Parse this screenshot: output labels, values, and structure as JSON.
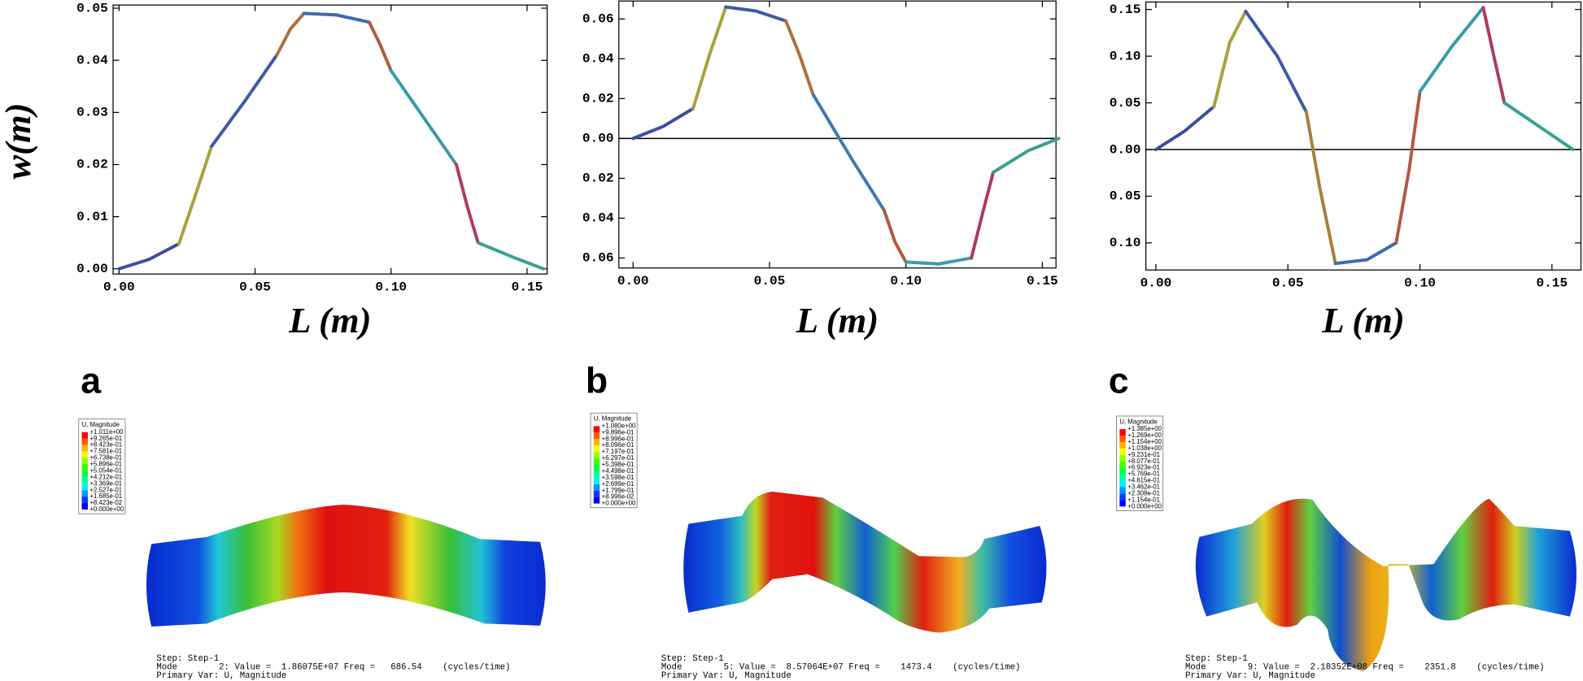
{
  "chart_data": [
    {
      "type": "line",
      "ylabel": "w(m)",
      "xlabel": "L (m)",
      "xlim": [
        -0.0022,
        0.1574
      ],
      "ylim": [
        -0.001,
        0.0506
      ],
      "xticks": [
        {
          "value": 0,
          "label": "0.00"
        },
        {
          "value": 0.05,
          "label": "0.05"
        },
        {
          "value": 0.1,
          "label": "0.10"
        },
        {
          "value": 0.15,
          "label": "0.15"
        }
      ],
      "yticks": [
        {
          "value": 0,
          "label": "0.00"
        },
        {
          "value": 0.01,
          "label": "0.01"
        },
        {
          "value": 0.02,
          "label": "0.02"
        },
        {
          "value": 0.03,
          "label": "0.03"
        },
        {
          "value": 0.04,
          "label": "0.04"
        },
        {
          "value": 0.05,
          "label": "0.05"
        }
      ],
      "segments": [
        {
          "color": "#3b4ea0",
          "x": [
            0,
            0.011,
            0.022
          ],
          "values": [
            0,
            0.0018,
            0.0048
          ]
        },
        {
          "color": "#a9a13f",
          "x": [
            0.022,
            0.028,
            0.034
          ],
          "values": [
            0.0048,
            0.014,
            0.0235
          ]
        },
        {
          "color": "#3d5aa8",
          "x": [
            0.034,
            0.046,
            0.058
          ],
          "values": [
            0.0235,
            0.032,
            0.041
          ]
        },
        {
          "color": "#b0703a",
          "x": [
            0.058,
            0.063,
            0.068
          ],
          "values": [
            0.041,
            0.046,
            0.049
          ]
        },
        {
          "color": "#3d6ab0",
          "x": [
            0.068,
            0.08,
            0.092
          ],
          "values": [
            0.049,
            0.0487,
            0.0473
          ]
        },
        {
          "color": "#b05a40",
          "x": [
            0.092,
            0.096,
            0.1
          ],
          "values": [
            0.0473,
            0.043,
            0.038
          ]
        },
        {
          "color": "#3a9aa8",
          "x": [
            0.1,
            0.112,
            0.124
          ],
          "values": [
            0.038,
            0.029,
            0.02
          ]
        },
        {
          "color": "#b03a5a",
          "x": [
            0.124,
            0.128,
            0.132
          ],
          "values": [
            0.02,
            0.012,
            0.005
          ]
        },
        {
          "color": "#3aa090",
          "x": [
            0.132,
            0.145,
            0.156
          ],
          "values": [
            0.005,
            0.0022,
            0
          ]
        }
      ]
    },
    {
      "type": "line",
      "xlabel": "L (m)",
      "xlim": [
        -0.0052,
        0.155
      ],
      "ylim": [
        -0.065,
        0.069
      ],
      "hlines": [
        0
      ],
      "xticks": [
        {
          "value": 0,
          "label": "0.00"
        },
        {
          "value": 0.05,
          "label": "0.05"
        },
        {
          "value": 0.1,
          "label": "0.10"
        },
        {
          "value": 0.15,
          "label": "0.15"
        }
      ],
      "yticks": [
        {
          "value": 0.06,
          "label": "0.06"
        },
        {
          "value": 0.04,
          "label": "0.04"
        },
        {
          "value": 0.02,
          "label": "0.02"
        },
        {
          "value": 0,
          "label": "0.00"
        },
        {
          "value": -0.02,
          "label": "0.02"
        },
        {
          "value": -0.04,
          "label": "0.04"
        },
        {
          "value": -0.06,
          "label": "0.06"
        }
      ],
      "segments": [
        {
          "color": "#3b4ea0",
          "x": [
            0,
            0.011,
            0.022
          ],
          "values": [
            0,
            0.006,
            0.015
          ]
        },
        {
          "color": "#a9a13f",
          "x": [
            0.022,
            0.028,
            0.034
          ],
          "values": [
            0.015,
            0.042,
            0.066
          ]
        },
        {
          "color": "#3d5aa8",
          "x": [
            0.034,
            0.045,
            0.056
          ],
          "values": [
            0.066,
            0.064,
            0.059
          ]
        },
        {
          "color": "#b0703a",
          "x": [
            0.056,
            0.061,
            0.066
          ],
          "values": [
            0.059,
            0.042,
            0.022
          ]
        },
        {
          "color": "#3d7ab0",
          "x": [
            0.066,
            0.08,
            0.092
          ],
          "values": [
            0.022,
            -0.01,
            -0.036
          ]
        },
        {
          "color": "#b05a40",
          "x": [
            0.092,
            0.096,
            0.1
          ],
          "values": [
            -0.036,
            -0.052,
            -0.062
          ]
        },
        {
          "color": "#3a9aa8",
          "x": [
            0.1,
            0.112,
            0.124
          ],
          "values": [
            -0.062,
            -0.063,
            -0.06
          ]
        },
        {
          "color": "#b03a5a",
          "x": [
            0.124,
            0.128,
            0.132
          ],
          "values": [
            -0.06,
            -0.038,
            -0.017
          ]
        },
        {
          "color": "#3aa090",
          "x": [
            0.132,
            0.145,
            0.156
          ],
          "values": [
            -0.017,
            -0.006,
            0
          ]
        }
      ]
    },
    {
      "type": "line",
      "xlabel": "L (m)",
      "xlim": [
        -0.0038,
        0.161
      ],
      "ylim": [
        -0.129,
        0.158
      ],
      "hlines": [
        0
      ],
      "xticks": [
        {
          "value": 0,
          "label": "0.00"
        },
        {
          "value": 0.05,
          "label": "0.05"
        },
        {
          "value": 0.1,
          "label": "0.10"
        },
        {
          "value": 0.15,
          "label": "0.15"
        }
      ],
      "yticks": [
        {
          "value": 0.15,
          "label": "0.15"
        },
        {
          "value": 0.1,
          "label": "0.10"
        },
        {
          "value": 0.05,
          "label": "0.05"
        },
        {
          "value": 0,
          "label": "0.00"
        },
        {
          "value": -0.05,
          "label": "0.05"
        },
        {
          "value": -0.1,
          "label": "0.10"
        }
      ],
      "segments": [
        {
          "color": "#3b4ea0",
          "x": [
            0,
            0.011,
            0.022
          ],
          "values": [
            0,
            0.02,
            0.046
          ]
        },
        {
          "color": "#a9a13f",
          "x": [
            0.022,
            0.028,
            0.034
          ],
          "values": [
            0.046,
            0.115,
            0.148
          ]
        },
        {
          "color": "#3d5aa8",
          "x": [
            0.034,
            0.046,
            0.057
          ],
          "values": [
            0.148,
            0.1,
            0.04
          ]
        },
        {
          "color": "#a8803a",
          "x": [
            0.057,
            0.062,
            0.068
          ],
          "values": [
            0.04,
            -0.04,
            -0.122
          ]
        },
        {
          "color": "#3d6ab0",
          "x": [
            0.068,
            0.08,
            0.091
          ],
          "values": [
            -0.122,
            -0.118,
            -0.1
          ]
        },
        {
          "color": "#b05a40",
          "x": [
            0.091,
            0.096,
            0.1
          ],
          "values": [
            -0.1,
            -0.02,
            0.062
          ]
        },
        {
          "color": "#3a9aa8",
          "x": [
            0.1,
            0.112,
            0.124
          ],
          "values": [
            0.062,
            0.11,
            0.152
          ]
        },
        {
          "color": "#b03a5a",
          "x": [
            0.124,
            0.128,
            0.132
          ],
          "values": [
            0.152,
            0.1,
            0.05
          ]
        },
        {
          "color": "#3aa090",
          "x": [
            0.132,
            0.145,
            0.158
          ],
          "values": [
            0.05,
            0.025,
            0
          ]
        }
      ]
    }
  ],
  "renders": [
    {
      "label": "a",
      "legend_title": "U, Magnitude",
      "legend_values": [
        "+1.011e+00",
        "+9.265e-01",
        "+8.423e-01",
        "+7.581e-01",
        "+6.738e-01",
        "+5.896e-01",
        "+5.054e-01",
        "+4.212e-01",
        "+3.369e-01",
        "+2.527e-01",
        "+1.685e-01",
        "+8.423e-02",
        "+0.000e+00"
      ],
      "step_lines": [
        "Step: Step-1",
        "Mode        2: Value =  1.86075E+07 Freq =   686.54    (cycles/time)",
        "Primary Var: U, Magnitude"
      ]
    },
    {
      "label": "b",
      "legend_title": "U, Magnitude",
      "legend_values": [
        "+1.080e+00",
        "+9.896e-01",
        "+8.996e-01",
        "+8.096e-01",
        "+7.197e-01",
        "+6.297e-01",
        "+5.398e-01",
        "+4.498e-01",
        "+3.598e-01",
        "+2.699e-01",
        "+1.799e-01",
        "+8.996e-02",
        "+0.000e+00"
      ],
      "step_lines": [
        "Step: Step-1",
        "Mode        5: Value =  8.57064E+07 Freq =    1473.4    (cycles/time)",
        "Primary Var: U, Magnitude"
      ]
    },
    {
      "label": "c",
      "legend_title": "U, Magnitude",
      "legend_values": [
        "+1.385e+00",
        "+1.269e+00",
        "+1.154e+00",
        "+1.038e+00",
        "+9.231e-01",
        "+8.077e-01",
        "+6.923e-01",
        "+5.769e-01",
        "+4.615e-01",
        "+3.462e-01",
        "+2.308e-01",
        "+1.154e-01",
        "+0.000e+00"
      ],
      "step_lines": [
        "Step: Step-1",
        "Mode        9: Value =  2.18352E+08 Freq =    2351.8    (cycles/time)",
        "Primary Var: U, Magnitude"
      ]
    }
  ]
}
